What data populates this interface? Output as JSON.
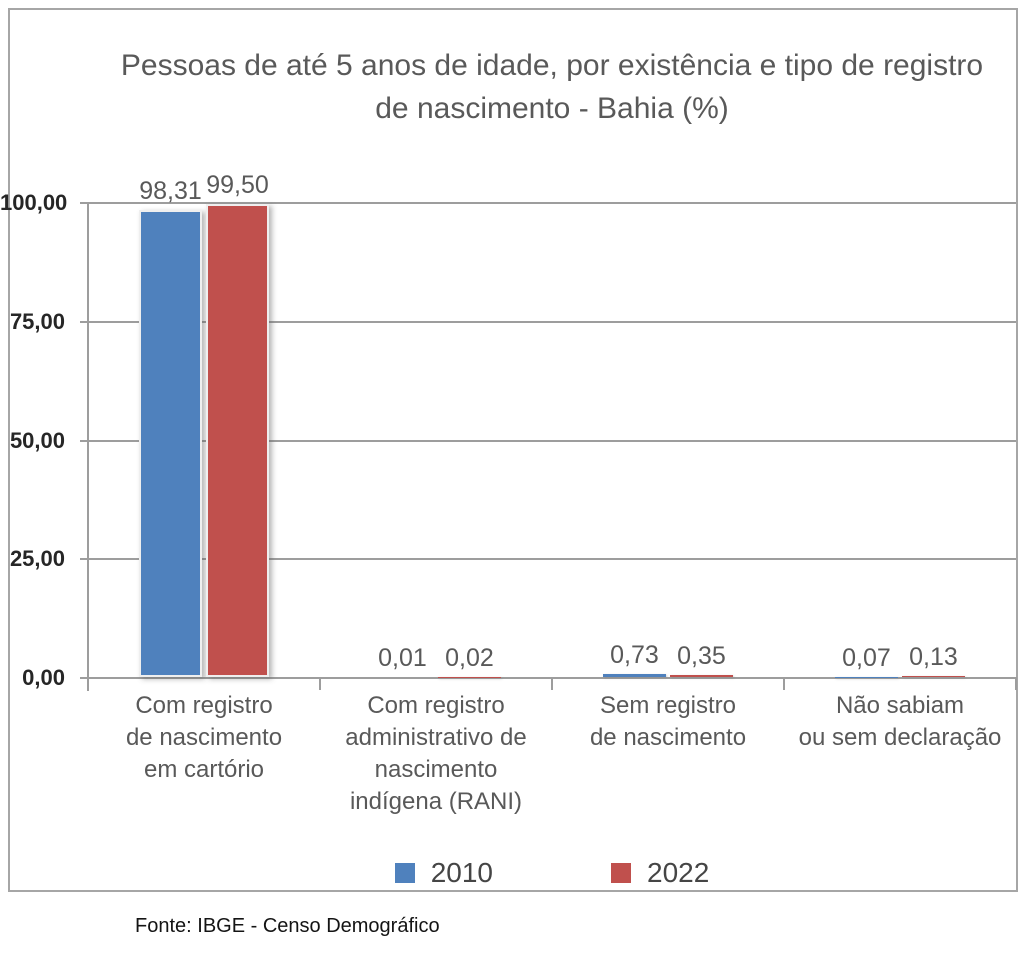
{
  "title": {
    "line1": "Pessoas de até 5 anos de idade, por existência e tipo de registro",
    "line2": "de nascimento - Bahia (%)"
  },
  "source_text": "Fonte: IBGE - Censo Demográfico",
  "colors": {
    "series_2010": "#4F81BD",
    "series_2022": "#C0504D",
    "grid_line": "#9D9D9D",
    "frame_border": "#A6A6A6",
    "title_text": "#595959",
    "axis_tick_text": "#262626",
    "data_label_text": "#595959"
  },
  "legend": {
    "items": [
      {
        "label": "2010",
        "color": "#4F81BD"
      },
      {
        "label": "2022",
        "color": "#C0504D"
      }
    ]
  },
  "chart_data": {
    "type": "bar",
    "title": "Pessoas de até 5 anos de idade, por existência e tipo de registro de nascimento - Bahia (%)",
    "categories": [
      "Com registro de nascimento em cartório",
      "Com registro administrativo de nascimento indígena (RANI)",
      "Sem registro de nascimento",
      "Não sabiam ou sem declaração"
    ],
    "categories_lines": [
      [
        "Com registro",
        "de nascimento",
        "em cartório"
      ],
      [
        "Com registro",
        "administrativo de",
        "nascimento",
        "indígena (RANI)"
      ],
      [
        "Sem registro",
        "de nascimento"
      ],
      [
        "Não sabiam",
        "ou sem declaração"
      ]
    ],
    "series": [
      {
        "name": "2010",
        "color": "#4F81BD",
        "values": [
          98.31,
          0.01,
          0.73,
          0.07
        ],
        "labels": [
          "98,31",
          "0,01",
          "0,73",
          "0,07"
        ]
      },
      {
        "name": "2022",
        "color": "#C0504D",
        "values": [
          99.5,
          0.02,
          0.35,
          0.13
        ],
        "labels": [
          "99,50",
          "0,02",
          "0,35",
          "0,13"
        ]
      }
    ],
    "xlabel": "",
    "ylabel": "",
    "ylim": [
      0,
      100
    ],
    "yticks": [
      {
        "v": 0,
        "label": "0,00"
      },
      {
        "v": 25,
        "label": "25,00"
      },
      {
        "v": 50,
        "label": "50,00"
      },
      {
        "v": 75,
        "label": "75,00"
      },
      {
        "v": 100,
        "label": "100,00"
      }
    ],
    "grid": true,
    "legend_position": "bottom",
    "source": "Fonte: IBGE - Censo Demográfico"
  }
}
